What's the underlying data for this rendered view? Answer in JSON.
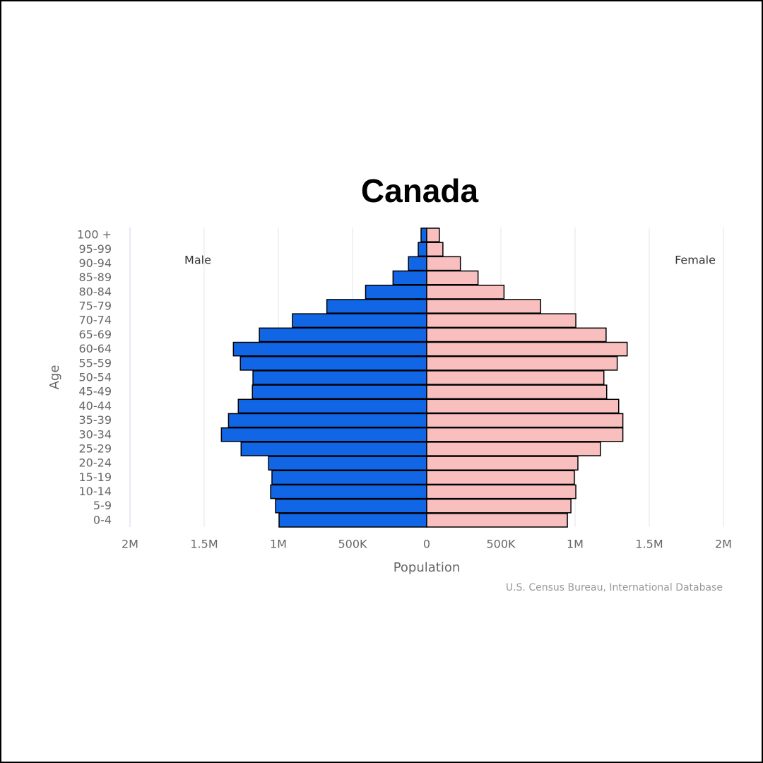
{
  "chart_data": {
    "type": "pyramid",
    "title": "Canada",
    "x_label": "Population",
    "y_label": "Age",
    "left_label": "Male",
    "right_label": "Female",
    "credit": "U.S. Census Bureau, International Database",
    "categories": [
      "100 +",
      "95-99",
      "90-94",
      "85-89",
      "80-84",
      "75-79",
      "70-74",
      "65-69",
      "60-64",
      "55-59",
      "50-54",
      "45-49",
      "40-44",
      "35-39",
      "30-34",
      "25-29",
      "20-24",
      "15-19",
      "10-14",
      "5-9",
      "0-4"
    ],
    "series": [
      {
        "name": "Male",
        "color": "#1166e6",
        "values": [
          -38000,
          -57000,
          -123000,
          -227000,
          -412000,
          -673000,
          -905000,
          -1128000,
          -1303000,
          -1256000,
          -1171000,
          -1175000,
          -1270000,
          -1336000,
          -1384000,
          -1251000,
          -1066000,
          -1043000,
          -1052000,
          -1019000,
          -995000
        ]
      },
      {
        "name": "Female",
        "color": "#f9bfbf",
        "values": [
          85000,
          109000,
          227000,
          346000,
          521000,
          768000,
          1005000,
          1209000,
          1351000,
          1284000,
          1194000,
          1213000,
          1294000,
          1322000,
          1322000,
          1171000,
          1019000,
          995000,
          1005000,
          972000,
          948000
        ]
      }
    ],
    "xlim": [
      -2000000,
      2000000
    ],
    "xticks": [
      {
        "value": -2000000,
        "label": "2M"
      },
      {
        "value": -1500000,
        "label": "1.5M"
      },
      {
        "value": -1000000,
        "label": "1M"
      },
      {
        "value": -500000,
        "label": "500K"
      },
      0,
      {
        "value": 500000,
        "label": "500K"
      },
      {
        "value": 1000000,
        "label": "1M"
      },
      {
        "value": 1500000,
        "label": "1.5M"
      },
      {
        "value": 2000000,
        "label": "2M"
      }
    ],
    "grid": true
  }
}
